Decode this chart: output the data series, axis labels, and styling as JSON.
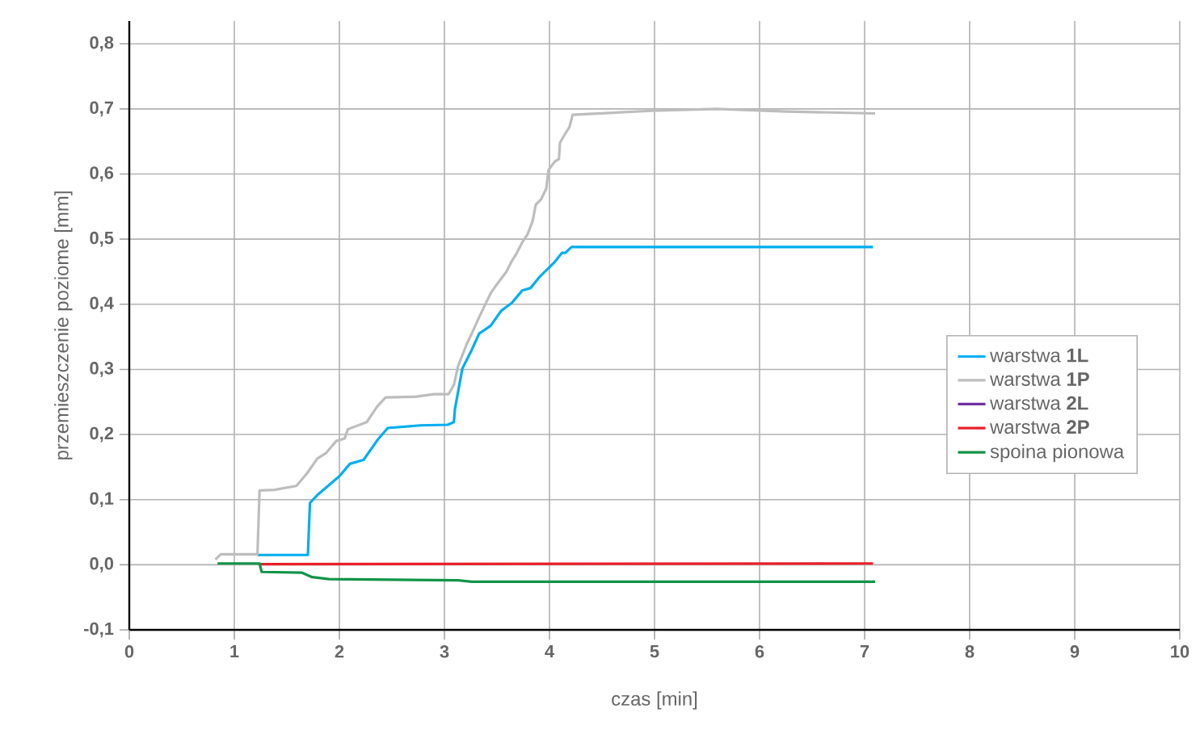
{
  "chart_data": {
    "type": "line",
    "xlabel": "czas [min]",
    "ylabel": "przemieszczenie poziome [mm]",
    "xlim": [
      0,
      10
    ],
    "xticks": [
      0,
      1,
      2,
      3,
      4,
      5,
      6,
      7,
      8,
      9,
      10
    ],
    "ylim": [
      -0.1,
      0.835
    ],
    "yticks": [
      {
        "value": -0.1,
        "label": "-0,1"
      },
      {
        "value": 0.0,
        "label": "0,0"
      },
      {
        "value": 0.1,
        "label": "0,1"
      },
      {
        "value": 0.2,
        "label": "0,2"
      },
      {
        "value": 0.3,
        "label": "0,3"
      },
      {
        "value": 0.4,
        "label": "0,4"
      },
      {
        "value": 0.5,
        "label": "0,5"
      },
      {
        "value": 0.6,
        "label": "0,6"
      },
      {
        "value": 0.7,
        "label": "0,7"
      },
      {
        "value": 0.8,
        "label": "0,8"
      }
    ],
    "grid": true,
    "legend": "right",
    "line_style": "solid",
    "series": [
      {
        "name": "warstwa **1L**",
        "color": "#00aeef",
        "x": [
          1.22,
          1.7,
          1.72,
          1.79,
          2.0,
          2.1,
          2.23,
          2.36,
          2.46,
          2.77,
          3.03,
          3.09,
          3.1,
          3.17,
          3.26,
          3.33,
          3.44,
          3.54,
          3.64,
          3.74,
          3.82,
          3.9,
          4.05,
          4.12,
          4.15,
          4.21,
          7.08
        ],
        "values": [
          0.015,
          0.015,
          0.095,
          0.107,
          0.136,
          0.155,
          0.161,
          0.191,
          0.21,
          0.214,
          0.215,
          0.219,
          0.239,
          0.301,
          0.33,
          0.355,
          0.367,
          0.39,
          0.402,
          0.421,
          0.425,
          0.441,
          0.465,
          0.479,
          0.479,
          0.488,
          0.488
        ]
      },
      {
        "name": "warstwa **1P**",
        "color": "#bdbdbd",
        "x": [
          0.82,
          0.87,
          1.22,
          1.24,
          1.38,
          1.59,
          1.69,
          1.79,
          1.87,
          1.97,
          2.05,
          2.08,
          2.26,
          2.36,
          2.44,
          2.72,
          2.9,
          3.04,
          3.09,
          3.13,
          3.21,
          3.26,
          3.33,
          3.44,
          3.51,
          3.59,
          3.64,
          3.69,
          3.74,
          3.79,
          3.84,
          3.87,
          3.92,
          3.97,
          3.99,
          4.05,
          4.09,
          4.1,
          4.15,
          4.19,
          4.22,
          4.97,
          5.59,
          6.26,
          7.1
        ],
        "values": [
          0.008,
          0.016,
          0.016,
          0.114,
          0.115,
          0.121,
          0.14,
          0.163,
          0.171,
          0.19,
          0.194,
          0.208,
          0.219,
          0.243,
          0.257,
          0.258,
          0.262,
          0.262,
          0.276,
          0.305,
          0.338,
          0.355,
          0.38,
          0.417,
          0.433,
          0.45,
          0.466,
          0.479,
          0.495,
          0.507,
          0.528,
          0.553,
          0.561,
          0.578,
          0.606,
          0.619,
          0.623,
          0.648,
          0.662,
          0.672,
          0.691,
          0.697,
          0.7,
          0.696,
          0.693
        ]
      },
      {
        "name": "warstwa **2L**",
        "color": "#7030a0"
      },
      {
        "name": "warstwa **2P**",
        "color": "#e8202a",
        "x": [
          1.23,
          7.08
        ],
        "values": [
          0.001,
          0.002
        ]
      },
      {
        "name": "spoina pionowa",
        "color": "#119447",
        "x": [
          0.84,
          1.24,
          1.26,
          1.64,
          1.74,
          1.9,
          3.13,
          3.26,
          7.1
        ],
        "values": [
          0.002,
          0.002,
          -0.011,
          -0.012,
          -0.019,
          -0.022,
          -0.024,
          -0.026,
          -0.026
        ]
      }
    ]
  }
}
